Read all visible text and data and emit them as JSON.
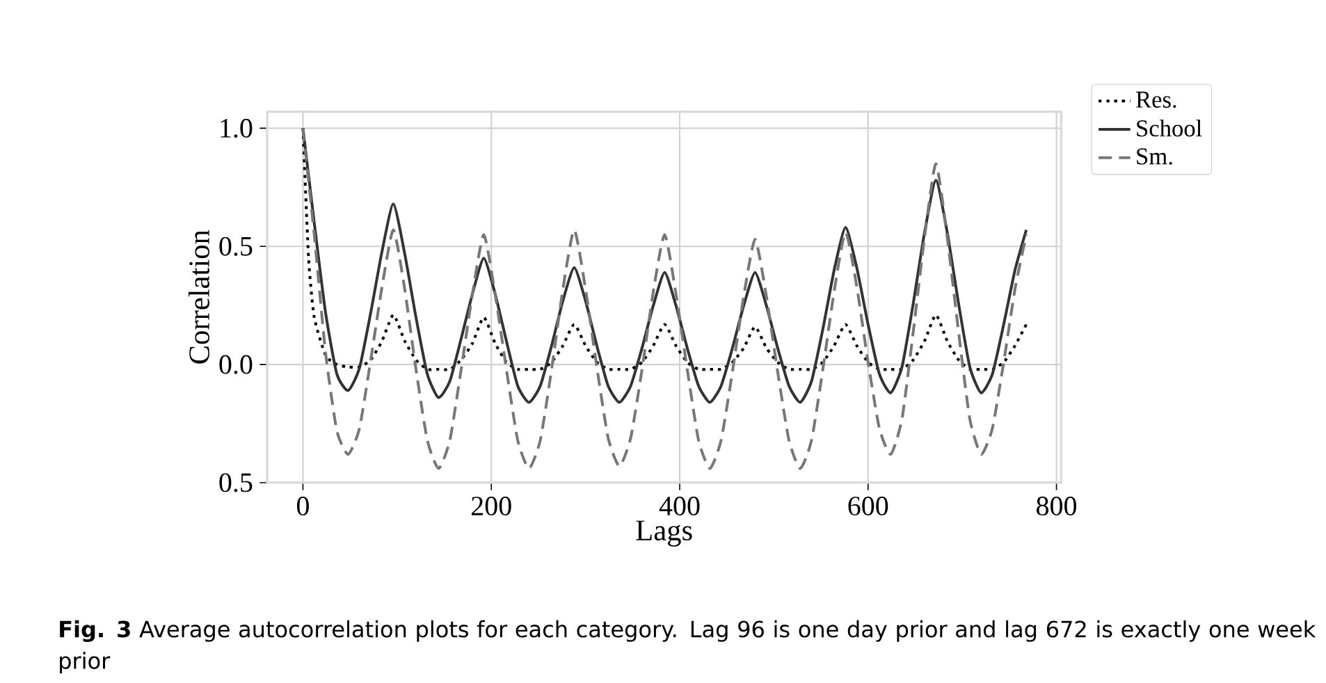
{
  "chart_data": {
    "type": "line",
    "xlabel": "Lags",
    "ylabel": "Correlation",
    "annotations": [
      "**Fig. 3** Average autocorrelation plots for each category. Lag 96 is one day prior and lag 672 is exactly one week prior"
    ],
    "x": [
      0,
      12,
      24,
      36,
      48,
      60,
      72,
      84,
      96,
      108,
      120,
      132,
      144,
      156,
      168,
      180,
      192,
      204,
      216,
      228,
      240,
      252,
      264,
      276,
      288,
      300,
      312,
      324,
      336,
      348,
      360,
      372,
      384,
      396,
      408,
      420,
      432,
      444,
      456,
      468,
      480,
      492,
      504,
      516,
      528,
      540,
      552,
      564,
      576,
      588,
      600,
      612,
      624,
      636,
      648,
      660,
      672,
      684,
      696,
      708,
      720,
      732,
      744,
      756,
      768
    ],
    "series": [
      {
        "name": "Res.",
        "color": "#000000",
        "line_style": "dotted",
        "x": [
          0,
          6,
          12,
          24,
          36,
          48,
          60,
          72,
          84,
          96,
          108,
          120,
          132,
          144,
          156,
          168,
          180,
          192,
          204,
          216,
          228,
          240,
          252,
          264,
          276,
          288,
          300,
          312,
          324,
          336,
          348,
          360,
          372,
          384,
          396,
          408,
          420,
          432,
          444,
          456,
          468,
          480,
          492,
          504,
          516,
          528,
          540,
          552,
          564,
          576,
          588,
          600,
          612,
          624,
          636,
          648,
          660,
          672,
          684,
          696,
          708,
          720,
          732,
          744,
          756,
          768
        ],
        "values": [
          1.0,
          0.45,
          0.2,
          0.04,
          0.0,
          -0.01,
          -0.01,
          0.02,
          0.1,
          0.21,
          0.1,
          0.02,
          -0.02,
          -0.02,
          -0.02,
          0.02,
          0.09,
          0.2,
          0.09,
          0.01,
          -0.02,
          -0.02,
          -0.02,
          0.01,
          0.08,
          0.17,
          0.08,
          0.01,
          -0.02,
          -0.02,
          -0.02,
          0.01,
          0.08,
          0.17,
          0.08,
          0.01,
          -0.02,
          -0.02,
          -0.02,
          0.01,
          0.07,
          0.16,
          0.07,
          0.01,
          -0.02,
          -0.02,
          -0.02,
          0.01,
          0.08,
          0.17,
          0.08,
          0.01,
          -0.02,
          -0.02,
          -0.02,
          0.02,
          0.1,
          0.21,
          0.1,
          0.02,
          -0.02,
          -0.02,
          -0.02,
          0.01,
          0.08,
          0.17
        ]
      },
      {
        "name": "School",
        "color": "#333333",
        "line_style": "solid",
        "values": [
          1.0,
          0.6,
          0.22,
          -0.04,
          -0.11,
          -0.015,
          0.22,
          0.48,
          0.68,
          0.47,
          0.2,
          -0.04,
          -0.14,
          -0.07,
          0.11,
          0.3,
          0.45,
          0.3,
          0.1,
          -0.09,
          -0.16,
          -0.09,
          0.08,
          0.27,
          0.41,
          0.27,
          0.08,
          -0.09,
          -0.16,
          -0.09,
          0.07,
          0.25,
          0.39,
          0.25,
          0.07,
          -0.09,
          -0.16,
          -0.09,
          0.07,
          0.25,
          0.39,
          0.25,
          0.07,
          -0.09,
          -0.16,
          -0.07,
          0.15,
          0.4,
          0.58,
          0.41,
          0.17,
          -0.04,
          -0.12,
          -0.01,
          0.26,
          0.56,
          0.78,
          0.56,
          0.26,
          -0.01,
          -0.12,
          -0.04,
          0.17,
          0.4,
          0.57
        ]
      },
      {
        "name": "Sm.",
        "color": "#777777",
        "line_style": "dashed",
        "values": [
          1.0,
          0.55,
          0.05,
          -0.28,
          -0.38,
          -0.27,
          0.02,
          0.33,
          0.57,
          0.32,
          -0.02,
          -0.32,
          -0.44,
          -0.32,
          -0.02,
          0.3,
          0.55,
          0.3,
          -0.02,
          -0.32,
          -0.44,
          -0.32,
          -0.02,
          0.32,
          0.57,
          0.32,
          -0.01,
          -0.31,
          -0.43,
          -0.31,
          -0.02,
          0.31,
          0.55,
          0.3,
          -0.02,
          -0.32,
          -0.44,
          -0.32,
          -0.03,
          0.29,
          0.53,
          0.29,
          -0.03,
          -0.32,
          -0.44,
          -0.32,
          -0.02,
          0.31,
          0.56,
          0.33,
          0.01,
          -0.27,
          -0.38,
          -0.23,
          0.14,
          0.54,
          0.85,
          0.54,
          0.14,
          -0.23,
          -0.38,
          -0.27,
          0.01,
          0.32,
          0.55
        ]
      }
    ],
    "xlim": [
      -38,
      805
    ],
    "ylim": [
      -0.5,
      1.07
    ],
    "xticks": [
      0,
      200,
      400,
      600,
      800
    ],
    "yticks": [
      {
        "value": -0.5,
        "label": "0.5"
      },
      {
        "value": 0,
        "label": "0.0"
      },
      {
        "value": 0.5,
        "label": "0.5"
      },
      {
        "value": 1,
        "label": "1.0"
      }
    ],
    "grid": true,
    "legend": "top right",
    "marker": "none"
  }
}
